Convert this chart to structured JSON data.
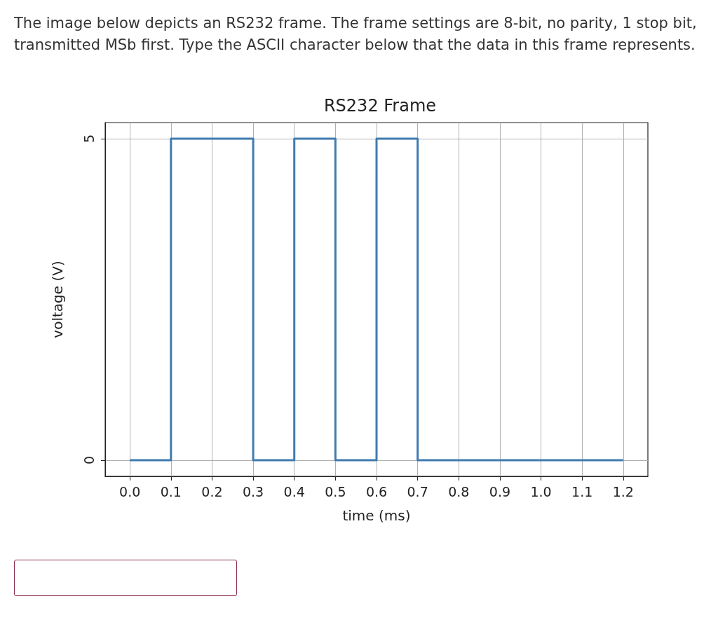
{
  "chart_data": {
    "type": "step",
    "title": "RS232 Frame",
    "xlabel": "time (ms)",
    "ylabel": "voltage (V)",
    "annotations": [
      "The image below depicts an RS232 frame. The frame settings are 8-bit, no parity, 1 stop bit, transmitted MSb first. Type the ASCII character below that the data in this frame represents."
    ],
    "x": [
      0,
      0.1,
      0.2,
      0.3,
      0.4,
      0.5,
      0.6,
      0.7,
      0.8,
      0.9,
      1,
      1.1,
      1.2
    ],
    "values": [
      0,
      5,
      5,
      0,
      5,
      0,
      5,
      0,
      0,
      0,
      0,
      0,
      0
    ],
    "color": "#3f7bb0",
    "marker": "none",
    "line_style": "solid",
    "grid": true,
    "xlim": [
      -0.06,
      1.26
    ],
    "ylim": [
      -0.25,
      5.25
    ],
    "xticks": [
      {
        "value": 0,
        "label": "0.0"
      },
      0.1,
      0.2,
      0.3,
      0.4,
      0.5,
      0.6,
      0.7,
      0.8,
      0.9,
      {
        "value": 1,
        "label": "1.0"
      },
      1.1,
      1.2
    ],
    "yticks": [
      0,
      5
    ]
  }
}
